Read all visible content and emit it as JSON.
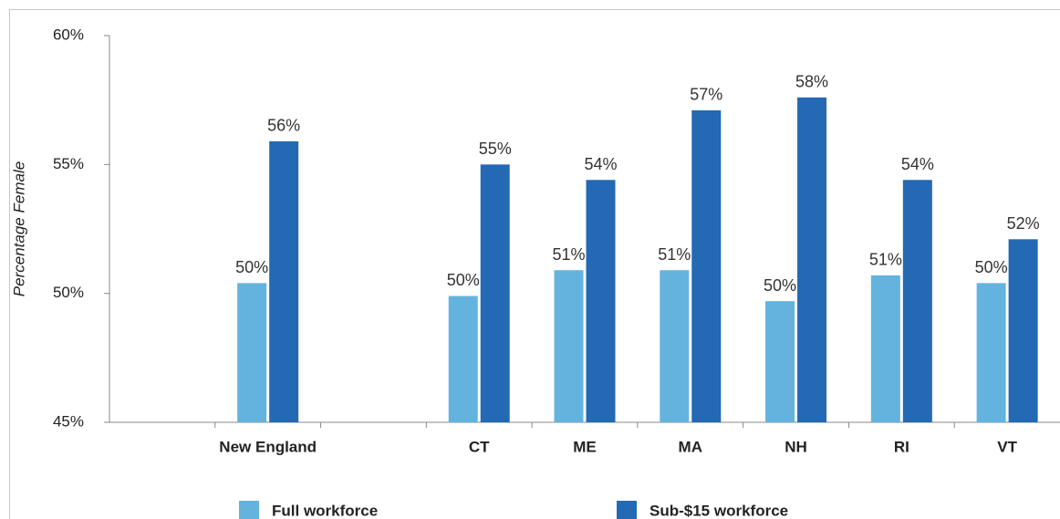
{
  "chart_data": {
    "type": "bar",
    "y_label": "Percentage Female",
    "categories": [
      null,
      "New England",
      null,
      "CT",
      "ME",
      "MA",
      "NH",
      "RI",
      "VT"
    ],
    "series": [
      {
        "name": "Full workforce",
        "color": "#64b3df",
        "values": [
          null,
          50.4,
          null,
          49.9,
          50.9,
          50.9,
          49.7,
          50.7,
          50.4
        ],
        "value_labels": [
          null,
          "50%",
          null,
          "50%",
          "51%",
          "51%",
          "50%",
          "51%",
          "50%"
        ]
      },
      {
        "name": "Sub-$15 workforce",
        "color": "#2369b3",
        "values": [
          null,
          55.9,
          null,
          55.0,
          54.4,
          57.1,
          57.6,
          54.4,
          52.1
        ],
        "value_labels": [
          null,
          "56%",
          null,
          "55%",
          "54%",
          "57%",
          "58%",
          "54%",
          "52%"
        ]
      }
    ],
    "ylim": [
      45,
      60
    ],
    "yticks": [
      {
        "value": 45,
        "label": "45%"
      },
      {
        "value": 50,
        "label": "50%"
      },
      {
        "value": 55,
        "label": "55%"
      },
      {
        "value": 60,
        "label": "60%"
      }
    ],
    "grid": false,
    "legend": "bottom"
  }
}
